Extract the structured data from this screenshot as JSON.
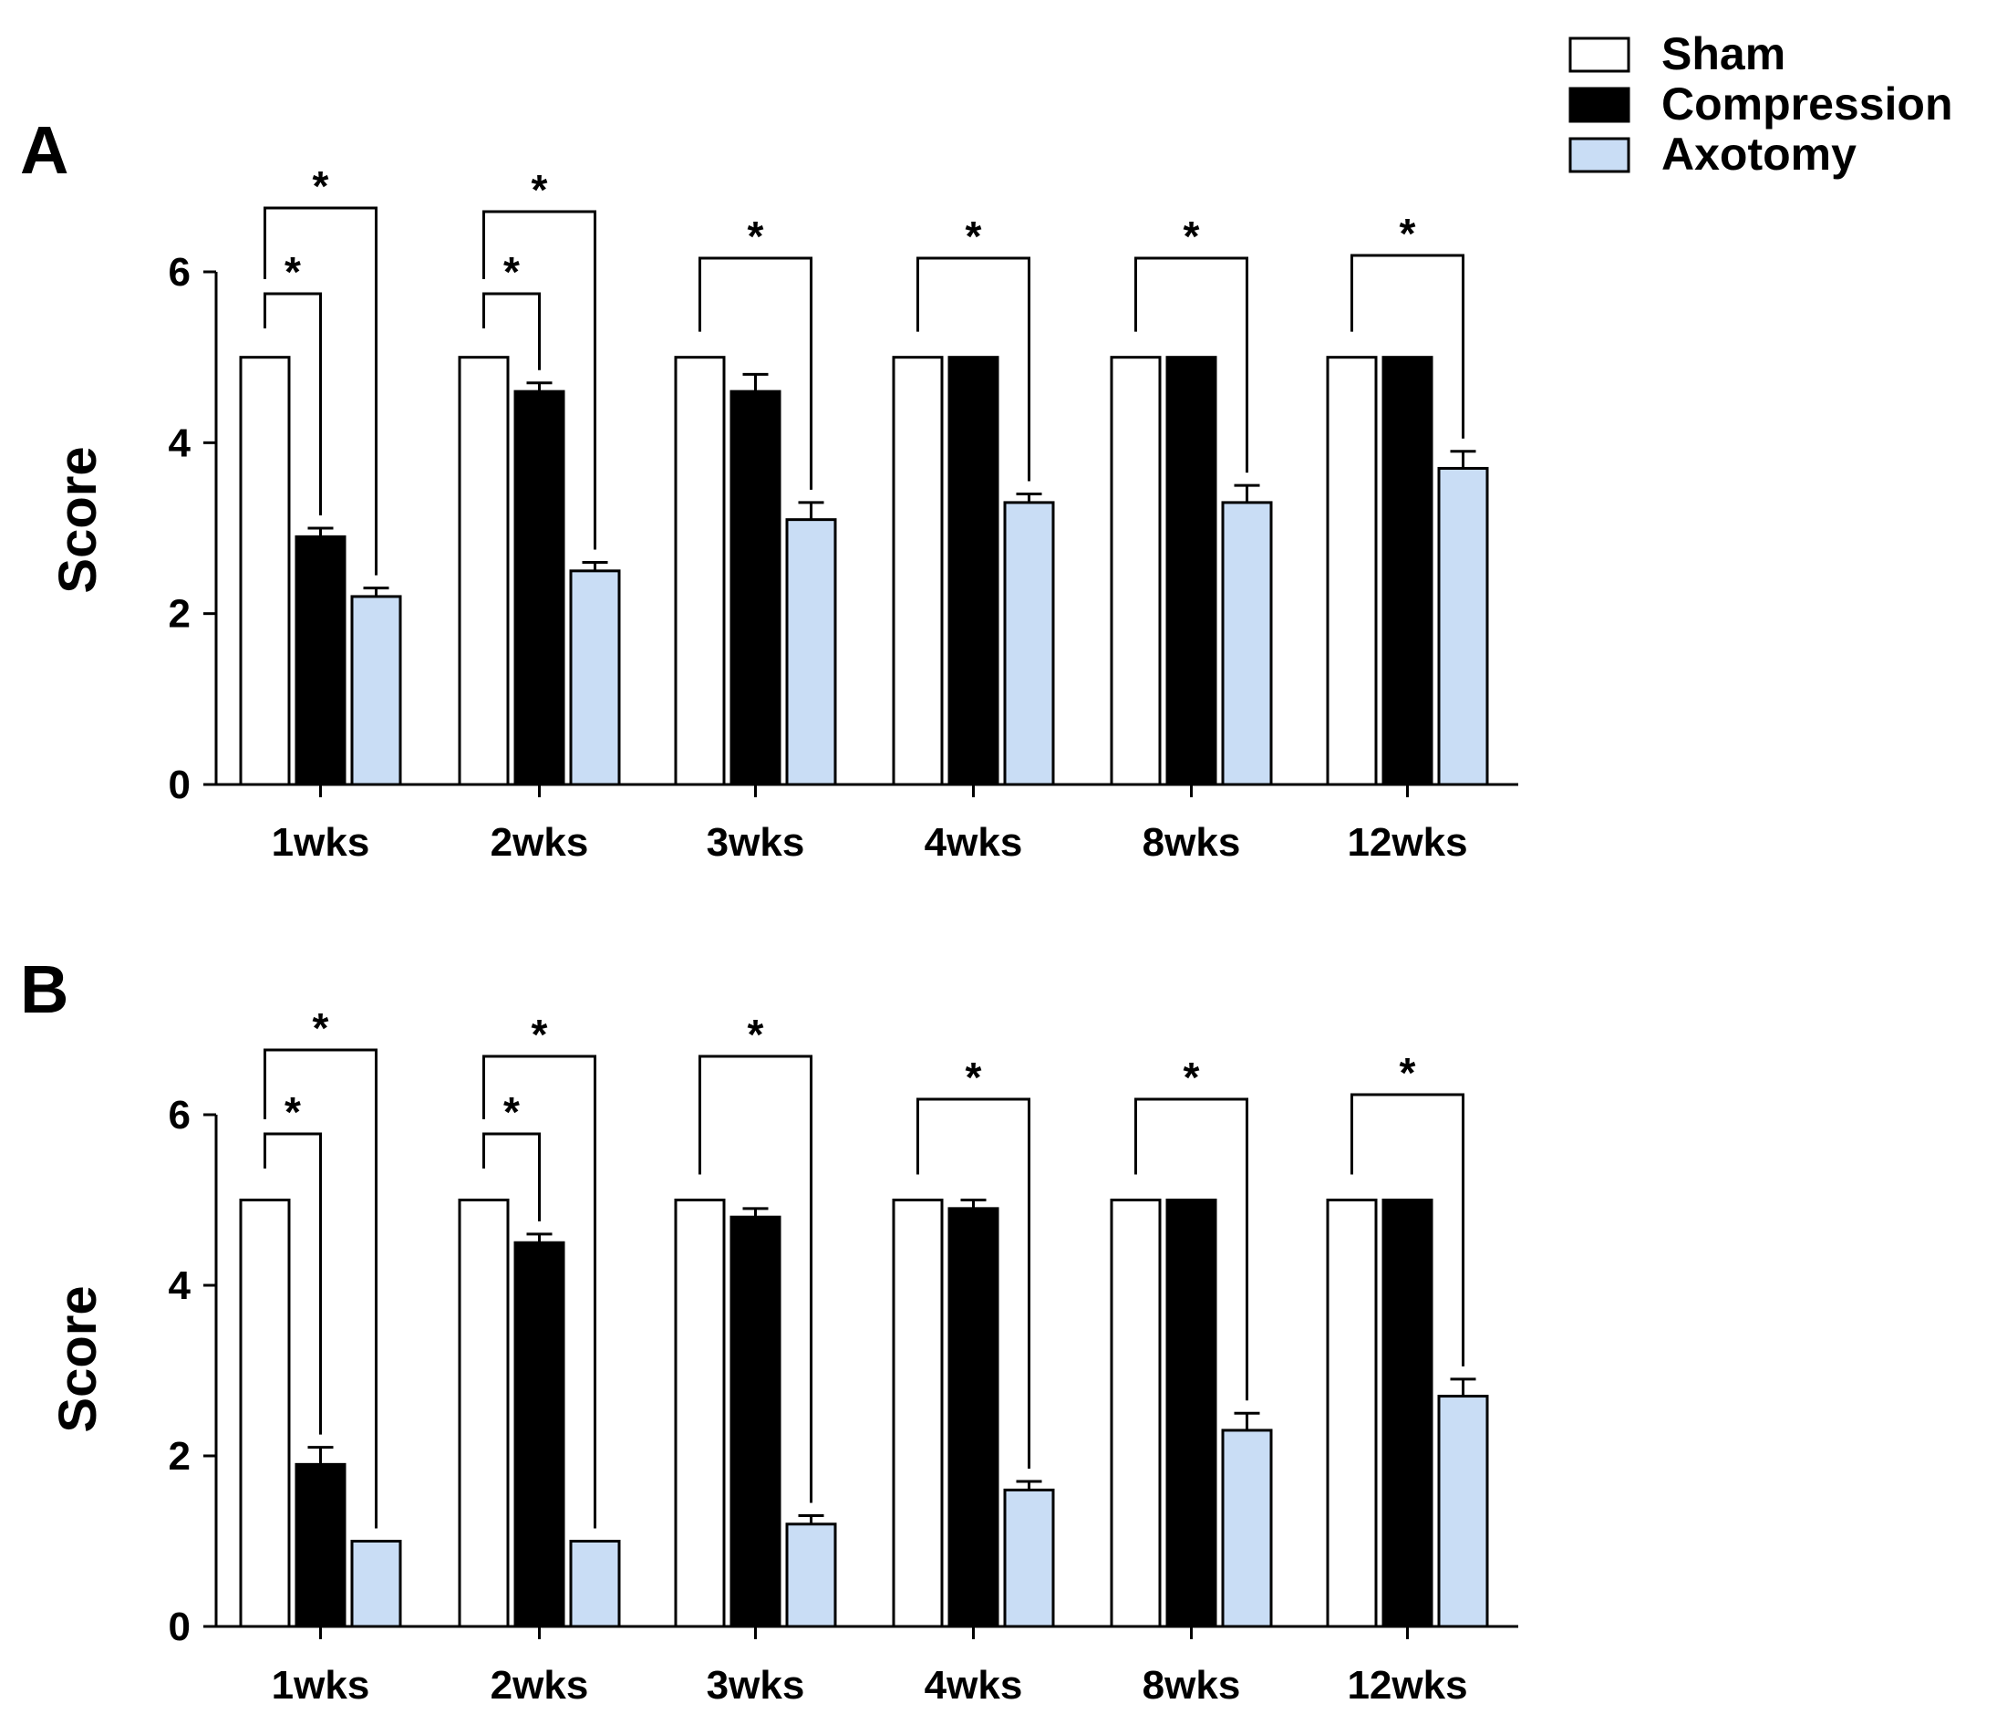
{
  "chart_data": [
    {
      "type": "bar",
      "panel_label": "A",
      "ylabel": "Score",
      "xlabel": "",
      "ylim": [
        0,
        6
      ],
      "yticks": [
        "0",
        "2",
        "4",
        "6"
      ],
      "categories": [
        "1wks",
        "2wks",
        "3wks",
        "4wks",
        "8wks",
        "12wks"
      ],
      "series": [
        {
          "name": "Sham",
          "values": [
            5,
            5,
            5,
            5,
            5,
            5
          ],
          "errors": [
            0,
            0,
            0,
            0,
            0,
            0
          ]
        },
        {
          "name": "Compression",
          "values": [
            2.9,
            4.6,
            4.6,
            5,
            5,
            5
          ],
          "errors": [
            0.1,
            0.1,
            0.2,
            0,
            0,
            0
          ]
        },
        {
          "name": "Axotomy",
          "values": [
            2.2,
            2.5,
            3.1,
            3.3,
            3.3,
            3.7
          ],
          "errors": [
            0.1,
            0.1,
            0.2,
            0.1,
            0.2,
            0.2
          ]
        }
      ],
      "significance": [
        {
          "category": "1wks",
          "pair": [
            "Sham",
            "Compression"
          ],
          "label": "*"
        },
        {
          "category": "1wks",
          "pair": [
            "Sham",
            "Axotomy"
          ],
          "label": "*"
        },
        {
          "category": "2wks",
          "pair": [
            "Sham",
            "Compression"
          ],
          "label": "*"
        },
        {
          "category": "2wks",
          "pair": [
            "Sham",
            "Axotomy"
          ],
          "label": "*"
        },
        {
          "category": "3wks",
          "pair": [
            "Sham",
            "Axotomy"
          ],
          "label": "*"
        },
        {
          "category": "4wks",
          "pair": [
            "Sham",
            "Axotomy"
          ],
          "label": "*"
        },
        {
          "category": "8wks",
          "pair": [
            "Sham",
            "Axotomy"
          ],
          "label": "*"
        },
        {
          "category": "12wks",
          "pair": [
            "Sham",
            "Axotomy"
          ],
          "label": "*"
        }
      ]
    },
    {
      "type": "bar",
      "panel_label": "B",
      "ylabel": "Score",
      "xlabel": "",
      "ylim": [
        0,
        6
      ],
      "yticks": [
        "0",
        "2",
        "4",
        "6"
      ],
      "categories": [
        "1wks",
        "2wks",
        "3wks",
        "4wks",
        "8wks",
        "12wks"
      ],
      "series": [
        {
          "name": "Sham",
          "values": [
            5,
            5,
            5,
            5,
            5,
            5
          ],
          "errors": [
            0,
            0,
            0,
            0,
            0,
            0
          ]
        },
        {
          "name": "Compression",
          "values": [
            1.9,
            4.5,
            4.8,
            4.9,
            5,
            5
          ],
          "errors": [
            0.2,
            0.1,
            0.1,
            0.1,
            0,
            0
          ]
        },
        {
          "name": "Axotomy",
          "values": [
            1,
            1,
            1.2,
            1.6,
            2.3,
            2.7
          ],
          "errors": [
            0,
            0,
            0.1,
            0.1,
            0.2,
            0.2
          ]
        }
      ],
      "significance": [
        {
          "category": "1wks",
          "pair": [
            "Sham",
            "Compression"
          ],
          "label": "*"
        },
        {
          "category": "1wks",
          "pair": [
            "Sham",
            "Axotomy"
          ],
          "label": "*"
        },
        {
          "category": "2wks",
          "pair": [
            "Sham",
            "Compression"
          ],
          "label": "*"
        },
        {
          "category": "2wks",
          "pair": [
            "Sham",
            "Axotomy"
          ],
          "label": "*"
        },
        {
          "category": "3wks",
          "pair": [
            "Sham",
            "Axotomy"
          ],
          "label": "*"
        },
        {
          "category": "4wks",
          "pair": [
            "Sham",
            "Axotomy"
          ],
          "label": "*"
        },
        {
          "category": "8wks",
          "pair": [
            "Sham",
            "Axotomy"
          ],
          "label": "*"
        },
        {
          "category": "12wks",
          "pair": [
            "Sham",
            "Axotomy"
          ],
          "label": "*"
        }
      ]
    }
  ],
  "legend": {
    "items": [
      {
        "name": "Sham",
        "color": "#ffffff"
      },
      {
        "name": "Compression",
        "color": "#000000"
      },
      {
        "name": "Axotomy",
        "color": "#c9ddf5"
      }
    ]
  },
  "colors": {
    "Sham": "#ffffff",
    "Compression": "#000000",
    "Axotomy": "#c9ddf5",
    "stroke": "#000000"
  }
}
